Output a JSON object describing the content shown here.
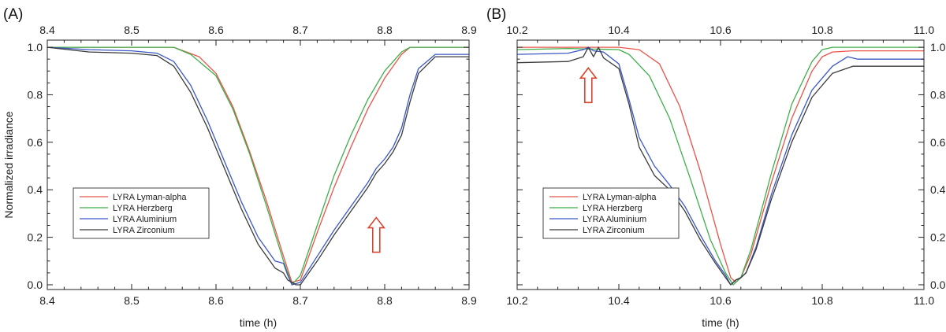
{
  "figure": {
    "ylabel": "Normalized irradiance",
    "arrow_color": "#d8442e"
  },
  "chart_data": [
    {
      "type": "line",
      "panel_label": "(A)",
      "xlabel": "time (h)",
      "ylabel": "Normalized irradiance",
      "xlim": [
        8.4,
        8.9
      ],
      "ylim": [
        -0.02,
        1.03
      ],
      "xticks": [
        8.4,
        8.5,
        8.6,
        8.7,
        8.8,
        8.9
      ],
      "xtick_labels": [
        "8.4",
        "8.5",
        "8.6",
        "8.7",
        "8.8",
        "8.9"
      ],
      "yticks": [
        0.0,
        0.2,
        0.4,
        0.6,
        0.8,
        1.0
      ],
      "ytick_labels": [
        "0.0",
        "0.2",
        "0.4",
        "0.6",
        "0.8",
        "1.0"
      ],
      "legend_position": "lower-left",
      "annotation": {
        "type": "up-arrow",
        "x": 8.79,
        "y": 0.21
      },
      "series": [
        {
          "name": "LYRA Lyman-alpha",
          "color": "#e8534a",
          "x": [
            8.4,
            8.5,
            8.55,
            8.58,
            8.6,
            8.62,
            8.64,
            8.66,
            8.68,
            8.69,
            8.7,
            8.72,
            8.74,
            8.76,
            8.78,
            8.8,
            8.82,
            8.83,
            8.84,
            8.9
          ],
          "y": [
            1.0,
            1.0,
            1.0,
            0.96,
            0.89,
            0.75,
            0.56,
            0.35,
            0.12,
            0.01,
            0.02,
            0.22,
            0.41,
            0.58,
            0.74,
            0.87,
            0.97,
            1.0,
            1.0,
            1.0
          ]
        },
        {
          "name": "LYRA Herzberg",
          "color": "#3fae49",
          "x": [
            8.4,
            8.5,
            8.55,
            8.57,
            8.6,
            8.62,
            8.64,
            8.66,
            8.68,
            8.69,
            8.7,
            8.72,
            8.74,
            8.76,
            8.78,
            8.8,
            8.82,
            8.83,
            8.9
          ],
          "y": [
            1.0,
            1.0,
            1.0,
            0.97,
            0.88,
            0.74,
            0.55,
            0.33,
            0.1,
            0.0,
            0.04,
            0.25,
            0.46,
            0.63,
            0.78,
            0.9,
            0.98,
            1.0,
            1.0
          ]
        },
        {
          "name": "LYRA Aluminium",
          "color": "#3a57c6",
          "x": [
            8.4,
            8.45,
            8.5,
            8.53,
            8.55,
            8.57,
            8.59,
            8.61,
            8.63,
            8.65,
            8.67,
            8.68,
            8.685,
            8.69,
            8.7,
            8.72,
            8.74,
            8.76,
            8.78,
            8.79,
            8.8,
            8.81,
            8.82,
            8.83,
            8.84,
            8.86,
            8.9
          ],
          "y": [
            1.0,
            0.99,
            0.985,
            0.975,
            0.94,
            0.84,
            0.69,
            0.52,
            0.35,
            0.2,
            0.1,
            0.09,
            0.04,
            0.0,
            0.01,
            0.12,
            0.23,
            0.33,
            0.43,
            0.49,
            0.53,
            0.58,
            0.66,
            0.8,
            0.91,
            0.97,
            0.97
          ]
        },
        {
          "name": "LYRA Zirconium",
          "color": "#3a3a3a",
          "x": [
            8.4,
            8.45,
            8.5,
            8.53,
            8.55,
            8.57,
            8.59,
            8.61,
            8.63,
            8.65,
            8.67,
            8.68,
            8.685,
            8.695,
            8.7,
            8.72,
            8.74,
            8.76,
            8.78,
            8.79,
            8.8,
            8.81,
            8.82,
            8.83,
            8.84,
            8.86,
            8.9
          ],
          "y": [
            1.0,
            0.98,
            0.975,
            0.965,
            0.92,
            0.81,
            0.66,
            0.49,
            0.32,
            0.17,
            0.07,
            0.05,
            0.02,
            0.0,
            0.0,
            0.1,
            0.21,
            0.31,
            0.41,
            0.47,
            0.51,
            0.56,
            0.63,
            0.77,
            0.89,
            0.96,
            0.96
          ]
        }
      ]
    },
    {
      "type": "line",
      "panel_label": "(B)",
      "xlabel": "time (h)",
      "ylabel": "",
      "xlim": [
        10.2,
        11.0
      ],
      "ylim": [
        -0.02,
        1.03
      ],
      "xticks": [
        10.2,
        10.4,
        10.6,
        10.8,
        11.0
      ],
      "xtick_labels": [
        "10.2",
        "10.4",
        "10.6",
        "10.8",
        "11.0"
      ],
      "yticks": [
        0.0,
        0.2,
        0.4,
        0.6,
        0.8,
        1.0
      ],
      "ytick_labels": [
        "0.0",
        "0.2",
        "0.4",
        "0.6",
        "0.8",
        "1.0"
      ],
      "legend_position": "lower-left",
      "annotation": {
        "type": "up-arrow",
        "x": 10.34,
        "y": 0.84
      },
      "series": [
        {
          "name": "LYRA Lyman-alpha",
          "color": "#e8534a",
          "x": [
            10.2,
            10.3,
            10.4,
            10.44,
            10.48,
            10.52,
            10.56,
            10.6,
            10.62,
            10.63,
            10.64,
            10.66,
            10.7,
            10.74,
            10.78,
            10.8,
            10.82,
            10.86,
            11.0
          ],
          "y": [
            1.0,
            1.0,
            1.0,
            0.99,
            0.93,
            0.75,
            0.48,
            0.17,
            0.03,
            0.01,
            0.03,
            0.13,
            0.43,
            0.7,
            0.9,
            0.96,
            0.98,
            0.985,
            0.985
          ]
        },
        {
          "name": "LYRA Herzberg",
          "color": "#3fae49",
          "x": [
            10.2,
            10.3,
            10.4,
            10.42,
            10.46,
            10.5,
            10.54,
            10.58,
            10.61,
            10.625,
            10.64,
            10.66,
            10.7,
            10.74,
            10.78,
            10.8,
            10.82,
            10.85,
            11.0
          ],
          "y": [
            0.99,
            0.995,
            0.99,
            0.97,
            0.88,
            0.7,
            0.45,
            0.19,
            0.05,
            0.0,
            0.03,
            0.15,
            0.47,
            0.76,
            0.94,
            0.99,
            1.0,
            1.0,
            1.0
          ]
        },
        {
          "name": "LYRA Aluminium",
          "color": "#3a57c6",
          "x": [
            10.2,
            10.3,
            10.33,
            10.34,
            10.35,
            10.37,
            10.4,
            10.42,
            10.44,
            10.47,
            10.5,
            10.53,
            10.56,
            10.59,
            10.61,
            10.62,
            10.63,
            10.64,
            10.65,
            10.67,
            10.7,
            10.74,
            10.78,
            10.82,
            10.85,
            10.87,
            11.0
          ],
          "y": [
            0.97,
            0.975,
            0.99,
            1.0,
            0.985,
            0.98,
            0.93,
            0.78,
            0.62,
            0.5,
            0.42,
            0.33,
            0.21,
            0.1,
            0.04,
            0.0,
            0.02,
            0.03,
            0.05,
            0.16,
            0.38,
            0.63,
            0.82,
            0.92,
            0.96,
            0.95,
            0.95
          ]
        },
        {
          "name": "LYRA Zirconium",
          "color": "#3a3a3a",
          "x": [
            10.2,
            10.3,
            10.33,
            10.34,
            10.35,
            10.36,
            10.37,
            10.4,
            10.42,
            10.44,
            10.47,
            10.5,
            10.53,
            10.56,
            10.59,
            10.61,
            10.62,
            10.63,
            10.64,
            10.65,
            10.67,
            10.7,
            10.74,
            10.78,
            10.82,
            10.86,
            11.0
          ],
          "y": [
            0.935,
            0.94,
            0.96,
            1.0,
            0.96,
            1.0,
            0.955,
            0.91,
            0.76,
            0.58,
            0.46,
            0.4,
            0.31,
            0.19,
            0.09,
            0.03,
            0.0,
            0.02,
            0.03,
            0.05,
            0.15,
            0.36,
            0.6,
            0.79,
            0.89,
            0.92,
            0.92
          ]
        }
      ]
    }
  ]
}
